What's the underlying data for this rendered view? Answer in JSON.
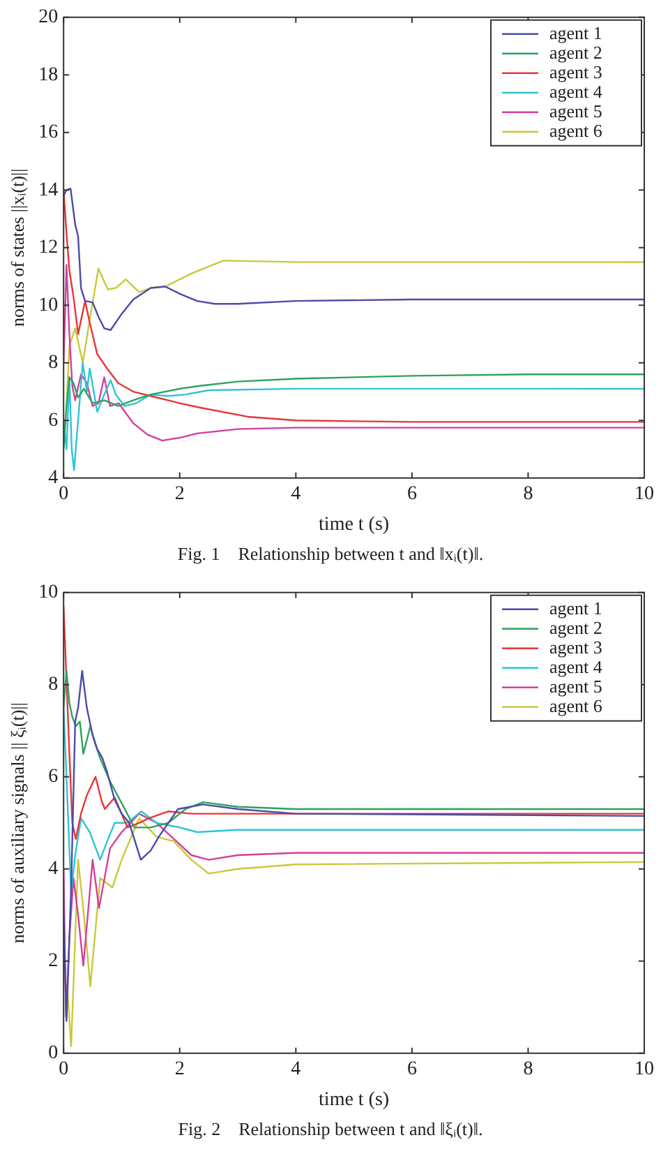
{
  "chart_data": [
    {
      "type": "line",
      "xlabel": "time t (s)",
      "ylabel": "norms of states ||xᵢ(t)||",
      "xlim": [
        0,
        10
      ],
      "xticks": [
        0,
        2,
        4,
        6,
        8,
        10
      ],
      "ylim": [
        4,
        20
      ],
      "yticks": [
        4,
        6,
        8,
        10,
        12,
        14,
        16,
        18,
        20
      ],
      "grid": false,
      "legend": "top right",
      "marker": "none",
      "line_style": "solid",
      "annotations": [
        "Fig. 1    Relationship between t and ‖xᵢ(t)‖."
      ],
      "series": [
        {
          "name": "agent 1",
          "color": "#4b4ba8",
          "x": [
            0,
            0.05,
            0.12,
            0.2,
            0.25,
            0.3,
            0.37,
            0.5,
            0.6,
            0.7,
            0.81,
            1,
            1.2,
            1.5,
            1.75,
            2,
            2.3,
            2.6,
            3,
            4,
            6,
            10
          ],
          "values": [
            13.8,
            14,
            14.05,
            12.8,
            12.4,
            10.6,
            10.15,
            10.1,
            9.6,
            9.2,
            9.14,
            9.7,
            10.2,
            10.6,
            10.65,
            10.4,
            10.15,
            10.05,
            10.05,
            10.15,
            10.2,
            10.2
          ]
        },
        {
          "name": "agent 2",
          "color": "#2ca25f",
          "x": [
            0,
            0.05,
            0.1,
            0.17,
            0.25,
            0.35,
            0.5,
            0.7,
            0.94,
            1.2,
            1.5,
            2,
            2.34,
            3,
            4,
            6,
            8,
            10
          ],
          "values": [
            5,
            6.5,
            7.5,
            7.3,
            6.8,
            7.1,
            6.6,
            6.7,
            6.5,
            6.7,
            6.9,
            7.1,
            7.2,
            7.35,
            7.45,
            7.55,
            7.6,
            7.6
          ]
        },
        {
          "name": "agent 3",
          "color": "#e8343a",
          "x": [
            0,
            0.05,
            0.1,
            0.17,
            0.25,
            0.37,
            0.45,
            0.58,
            0.75,
            0.94,
            1.2,
            1.5,
            2,
            2.34,
            3.17,
            4,
            6,
            10
          ],
          "values": [
            14,
            12.5,
            11.2,
            10.3,
            9.0,
            10.15,
            9.4,
            8.3,
            7.8,
            7.3,
            7.0,
            6.85,
            6.6,
            6.45,
            6.13,
            6.0,
            5.95,
            5.95
          ]
        },
        {
          "name": "agent 4",
          "color": "#2ec4d6",
          "x": [
            0,
            0.05,
            0.1,
            0.14,
            0.18,
            0.25,
            0.33,
            0.4,
            0.45,
            0.58,
            0.7,
            0.81,
            0.9,
            1.05,
            1.25,
            1.5,
            1.8,
            2.1,
            2.5,
            4,
            10
          ],
          "values": [
            6,
            5,
            7.5,
            5.0,
            4.27,
            6.0,
            8.0,
            7.0,
            7.8,
            6.3,
            6.9,
            7.4,
            6.9,
            6.5,
            6.6,
            6.9,
            6.85,
            6.9,
            7.05,
            7.1,
            7.1
          ]
        },
        {
          "name": "agent 5",
          "color": "#d43f9e",
          "x": [
            0,
            0.03,
            0.05,
            0.1,
            0.15,
            0.2,
            0.3,
            0.4,
            0.5,
            0.6,
            0.7,
            0.8,
            0.95,
            1.2,
            1.45,
            1.7,
            2.0,
            2.3,
            3,
            4,
            10
          ],
          "values": [
            8,
            10,
            11.4,
            9,
            7.2,
            6.7,
            7.6,
            7.3,
            6.5,
            6.6,
            7.5,
            6.5,
            6.6,
            5.9,
            5.5,
            5.3,
            5.4,
            5.55,
            5.7,
            5.75,
            5.75
          ]
        },
        {
          "name": "agent 6",
          "color": "#c9c93a",
          "x": [
            0.05,
            0.1,
            0.2,
            0.33,
            0.45,
            0.6,
            0.76,
            0.9,
            1.07,
            1.3,
            1.5,
            1.75,
            2.2,
            2.75,
            4,
            10
          ],
          "values": [
            6.5,
            8.6,
            9.2,
            8.0,
            9.5,
            11.28,
            10.55,
            10.6,
            10.9,
            10.46,
            10.6,
            10.65,
            11.1,
            11.55,
            11.5,
            11.5
          ]
        }
      ]
    },
    {
      "type": "line",
      "xlabel": "time t (s)",
      "ylabel": "norms of auxiliary signals || ξᵢ(t)||",
      "xlim": [
        0,
        10
      ],
      "xticks": [
        0,
        2,
        4,
        6,
        8,
        10
      ],
      "ylim": [
        0,
        10
      ],
      "yticks": [
        0,
        2,
        4,
        6,
        8,
        10
      ],
      "grid": false,
      "legend": "top right",
      "marker": "none",
      "line_style": "solid",
      "annotations": [
        "Fig. 2    Relationship between t and ‖ξᵢ(t)‖."
      ],
      "series": [
        {
          "name": "agent 1",
          "color": "#4b4ba8",
          "x": [
            0,
            0.05,
            0.13,
            0.2,
            0.25,
            0.32,
            0.4,
            0.5,
            0.58,
            0.67,
            0.75,
            0.88,
            1.0,
            1.13,
            1.33,
            1.5,
            1.64,
            1.97,
            2.4,
            3,
            4,
            10
          ],
          "values": [
            3,
            0.7,
            3.6,
            7.2,
            7.5,
            8.3,
            7.5,
            6.9,
            6.6,
            6.4,
            6.1,
            5.5,
            5.2,
            5.0,
            4.2,
            4.4,
            4.7,
            5.3,
            5.4,
            5.3,
            5.2,
            5.15
          ]
        },
        {
          "name": "agent 2",
          "color": "#2ca25f",
          "x": [
            0,
            0.05,
            0.1,
            0.15,
            0.21,
            0.28,
            0.34,
            0.46,
            0.55,
            0.63,
            0.8,
            0.97,
            1.22,
            1.5,
            1.8,
            2.1,
            2.4,
            3,
            4,
            10
          ],
          "values": [
            7.5,
            8.3,
            7.6,
            7.3,
            7.1,
            7.2,
            6.5,
            7.1,
            6.7,
            6.4,
            5.9,
            5.5,
            4.9,
            4.9,
            5.0,
            5.3,
            5.45,
            5.35,
            5.3,
            5.3
          ]
        },
        {
          "name": "agent 3",
          "color": "#e8343a",
          "x": [
            0,
            0.1,
            0.15,
            0.21,
            0.3,
            0.4,
            0.55,
            0.65,
            0.71,
            0.88,
            1.1,
            1.3,
            1.47,
            1.8,
            2.2,
            3,
            10
          ],
          "values": [
            9.7,
            6.5,
            5.0,
            4.65,
            5.2,
            5.6,
            6.0,
            5.5,
            5.3,
            5.55,
            4.9,
            5.0,
            5.1,
            5.25,
            5.2,
            5.2,
            5.2
          ]
        },
        {
          "name": "agent 4",
          "color": "#2ec4d6",
          "x": [
            0,
            0.05,
            0.13,
            0.2,
            0.3,
            0.45,
            0.63,
            0.75,
            0.88,
            1.1,
            1.34,
            1.6,
            2.0,
            2.3,
            3,
            10
          ],
          "values": [
            7.5,
            6,
            3.5,
            4.3,
            5.1,
            4.8,
            4.2,
            4.6,
            5.0,
            5.0,
            5.25,
            5.0,
            4.9,
            4.8,
            4.85,
            4.85
          ]
        },
        {
          "name": "agent 5",
          "color": "#d43f9e",
          "x": [
            0,
            0.04,
            0.1,
            0.17,
            0.25,
            0.34,
            0.5,
            0.61,
            0.8,
            1.0,
            1.3,
            1.6,
            1.9,
            2.2,
            2.5,
            3,
            4,
            10
          ],
          "values": [
            4,
            0.8,
            2.5,
            3.8,
            3.0,
            1.9,
            4.2,
            3.15,
            4.45,
            4.8,
            5.2,
            5.0,
            4.65,
            4.3,
            4.2,
            4.3,
            4.35,
            4.35
          ]
        },
        {
          "name": "agent 6",
          "color": "#c9c93a",
          "x": [
            0.06,
            0.13,
            0.25,
            0.35,
            0.46,
            0.63,
            0.84,
            1.0,
            1.3,
            1.6,
            1.9,
            2.2,
            2.5,
            3,
            4,
            10
          ],
          "values": [
            1.5,
            0.15,
            4.2,
            3.0,
            1.45,
            3.8,
            3.6,
            4.2,
            5.1,
            4.7,
            4.6,
            4.2,
            3.9,
            4.0,
            4.1,
            4.15
          ]
        }
      ]
    }
  ]
}
